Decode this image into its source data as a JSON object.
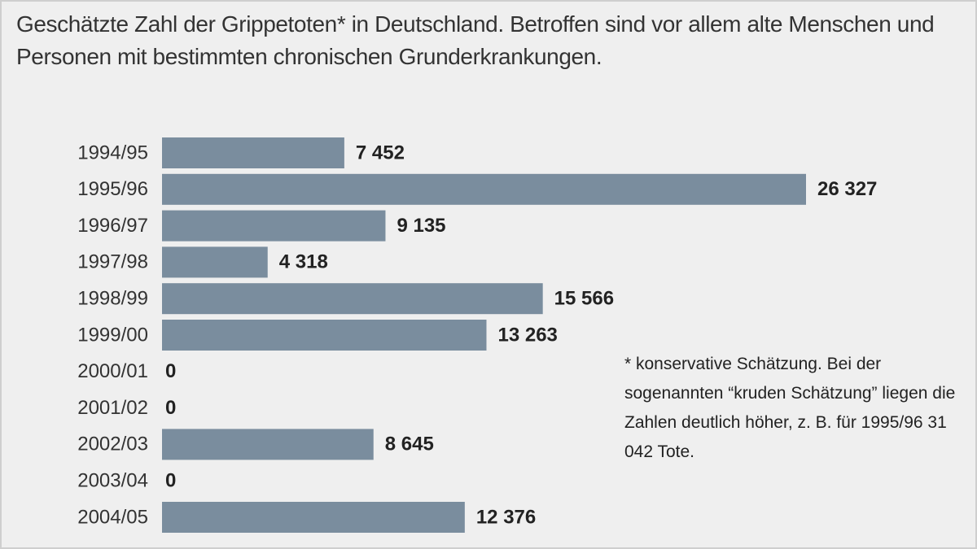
{
  "chart_data": {
    "type": "bar",
    "orientation": "horizontal",
    "title": "Geschätzte Zahl der Grippetoten* in Deutschland. Betroffen sind vor allem alte Menschen und Personen mit bestimmten chronischen Grunderkrankungen.",
    "categories": [
      "1994/95",
      "1995/96",
      "1996/97",
      "1997/98",
      "1998/99",
      "1999/00",
      "2000/01",
      "2001/02",
      "2002/03",
      "2003/04",
      "2004/05"
    ],
    "values": [
      7452,
      26327,
      9135,
      4318,
      15566,
      13263,
      0,
      0,
      8645,
      0,
      12376
    ],
    "value_labels": [
      "7 452",
      "26 327",
      "9 135",
      "4 318",
      "15 566",
      "13 263",
      "0",
      "0",
      "8 645",
      "0",
      "12 376"
    ],
    "color": "#7a8d9e",
    "annotation": "* konservative Schätzung. Bei der sogenannten “kruden Schät­zung” liegen die Zahlen deutlich höher, z. B. für 1995/96 31 042 Tote."
  }
}
